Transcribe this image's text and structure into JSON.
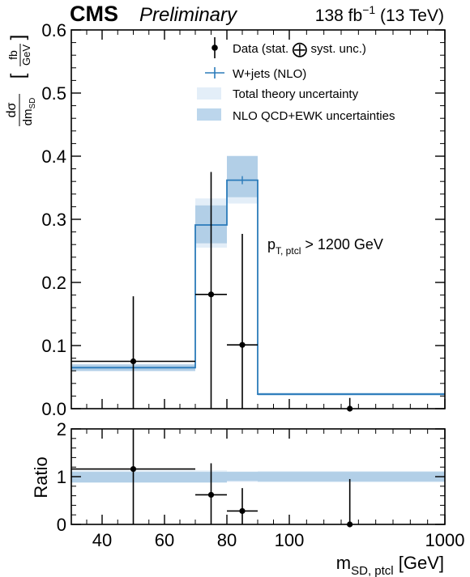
{
  "header": {
    "experiment": "CMS",
    "status": "Preliminary",
    "lumi_value": "138 fb",
    "lumi_exp": "−1",
    "energy": "(13 TeV)"
  },
  "colors": {
    "prediction_line": "#2b7bba",
    "total_theory_band": "#e3eef8",
    "nlo_band": "#9cc2e0",
    "data": "#000000"
  },
  "chart_data": [
    {
      "panel": "main",
      "type": "line",
      "ylabel": "dσ/dm_SD [fb/GeV]",
      "ylabel_parts": {
        "num": "dσ",
        "den": "dm",
        "den_sub": "SD",
        "unit_num": "fb",
        "unit_den": "GeV"
      },
      "ylim": [
        0,
        0.6
      ],
      "yticks": [
        "0.0",
        "0.1",
        "0.2",
        "0.3",
        "0.4",
        "0.5",
        "0.6"
      ],
      "annotation": {
        "main": "p",
        "sub": "T, ptcl",
        "rest": " > 1200 GeV"
      },
      "bin_edges": [
        30,
        70,
        80,
        90,
        1000
      ],
      "series": [
        {
          "name": "W+jets (NLO)",
          "values": [
            0.065,
            0.291,
            0.362,
            0.023
          ],
          "total_theory_unc": [
            [
              0.059,
              0.071
            ],
            [
              0.255,
              0.333
            ],
            [
              0.325,
              0.401
            ],
            [
              0.021,
              0.025
            ]
          ],
          "nlo_unc": [
            [
              0.06,
              0.07
            ],
            [
              0.262,
              0.322
            ],
            [
              0.335,
              0.4
            ],
            [
              0.021,
              0.025
            ]
          ]
        },
        {
          "name": "Data (stat. ⊕ syst. unc.)",
          "x": [
            50,
            75,
            85,
            450
          ],
          "values": [
            0.075,
            0.181,
            0.101,
            0.0
          ],
          "yerr_low": [
            0.075,
            0.181,
            0.101,
            0.0
          ],
          "yerr_high": [
            0.103,
            0.194,
            0.176,
            0.017
          ],
          "xerr_low": [
            20,
            5,
            5,
            0
          ],
          "xerr_high": [
            20,
            5,
            5,
            0
          ],
          "hline_full_bin": [
            true,
            false,
            false,
            false
          ]
        }
      ],
      "legend": [
        {
          "label": "Data (stat. ",
          "label_after": " syst. unc.)",
          "kind": "data"
        },
        {
          "label": "W+jets (NLO)",
          "kind": "line"
        },
        {
          "label": "Total theory uncertainty",
          "kind": "band-light"
        },
        {
          "label": "NLO QCD+EWK uncertainties",
          "kind": "band-dark"
        }
      ],
      "legend_position": "top-right"
    },
    {
      "panel": "ratio",
      "type": "scatter",
      "ylabel": "Ratio",
      "ylim": [
        0,
        2
      ],
      "yticks": [
        "0",
        "1",
        "2"
      ],
      "xlabel": "m_SD, ptcl [GeV]",
      "xlabel_parts": {
        "main": "m",
        "sub": "SD, ptcl",
        "rest": " [GeV]"
      },
      "xticks": [
        {
          "value": 40,
          "label": "40"
        },
        {
          "value": 60,
          "label": "60"
        },
        {
          "value": 80,
          "label": "80"
        },
        {
          "value": 100,
          "label": "100"
        },
        {
          "value": 1000,
          "label": "1000"
        }
      ],
      "bin_edges": [
        30,
        70,
        80,
        90,
        1000
      ],
      "x": [
        50,
        75,
        85,
        450
      ],
      "values": [
        1.16,
        0.62,
        0.28,
        0.0
      ],
      "yerr_low": [
        1.16,
        0.62,
        0.28,
        0.0
      ],
      "yerr_high": [
        1.5,
        0.66,
        0.48,
        0.95
      ],
      "xerr_low": [
        20,
        5,
        5,
        0
      ],
      "xerr_high": [
        20,
        5,
        5,
        0
      ],
      "total_theory_unc": [
        [
          0.87,
          1.13
        ],
        [
          0.87,
          1.13
        ],
        [
          0.89,
          1.11
        ],
        [
          0.88,
          1.12
        ]
      ],
      "nlo_unc": [
        [
          0.88,
          1.1
        ],
        [
          0.88,
          1.1
        ],
        [
          0.91,
          1.1
        ],
        [
          0.9,
          1.1
        ]
      ]
    }
  ]
}
